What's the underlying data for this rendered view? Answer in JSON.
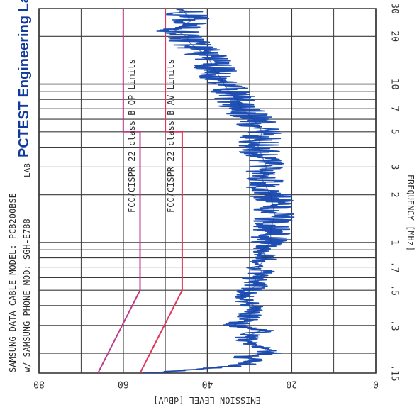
{
  "chart_data": {
    "type": "line",
    "orientation": "rotated-90-cw",
    "brand": "PCTEST Engineering Lab.",
    "lab_prefix": "LAB",
    "title_lines": [
      "SAMSUNG DATA CABLE   MODEL: PCB200BSE",
      "w/ SAMSUNG PHONE MOD: SGH-E788"
    ],
    "xlabel": "FREQUENCY [MHz]",
    "ylabel": "EMISSION LEVEL [dBuV]",
    "x_scale": "log",
    "xlim": [
      0.15,
      30
    ],
    "ylim": [
      0,
      80
    ],
    "x_ticks": [
      {
        "value": 0.15,
        "label": ".15"
      },
      {
        "value": 0.3,
        "label": ".3"
      },
      {
        "value": 0.5,
        "label": ".5"
      },
      {
        "value": 0.7,
        "label": ".7"
      },
      {
        "value": 1,
        "label": "1"
      },
      {
        "value": 2,
        "label": "2"
      },
      {
        "value": 3,
        "label": "3"
      },
      {
        "value": 5,
        "label": "5"
      },
      {
        "value": 7,
        "label": "7"
      },
      {
        "value": 10,
        "label": "10"
      },
      {
        "value": 20,
        "label": "20"
      },
      {
        "value": 30,
        "label": "30"
      }
    ],
    "y_ticks": [
      {
        "value": 0,
        "label": "0"
      },
      {
        "value": 20,
        "label": "20"
      },
      {
        "value": 40,
        "label": "40"
      },
      {
        "value": 60,
        "label": "60"
      },
      {
        "value": 80,
        "label": "80"
      }
    ],
    "grid": true,
    "limit_lines": [
      {
        "name": "FCC/CISPR 22 class B QP Limits",
        "color": "#c03a8a",
        "x": [
          0.15,
          0.5,
          5,
          5,
          30
        ],
        "y": [
          66,
          56,
          56,
          60,
          60
        ]
      },
      {
        "name": "FCC/CISPR 22 class B AV Limits",
        "color": "#e0365a",
        "x": [
          0.15,
          0.5,
          5,
          5,
          30
        ],
        "y": [
          56,
          46,
          46,
          50,
          50
        ]
      }
    ],
    "series": [
      {
        "color": "#1f4fb3",
        "x": [
          0.15,
          0.16,
          0.17,
          0.18,
          0.19,
          0.2,
          0.22,
          0.24,
          0.26,
          0.28,
          0.3,
          0.32,
          0.35,
          0.38,
          0.4,
          0.43,
          0.46,
          0.5,
          0.55,
          0.6,
          0.65,
          0.7,
          0.8,
          0.9,
          1,
          1.2,
          1.5,
          2,
          2.5,
          3,
          3.5,
          4,
          5,
          6,
          7,
          8,
          9,
          10,
          12,
          15,
          18,
          20,
          22,
          25,
          30
        ],
        "y": [
          54,
          40,
          31,
          28,
          32,
          25,
          27,
          31,
          30,
          27,
          34,
          31,
          30,
          28,
          29,
          31,
          32,
          30,
          28,
          29,
          27,
          28,
          26,
          27,
          25,
          25,
          24,
          25,
          27,
          26,
          27,
          28,
          27,
          29,
          32,
          33,
          35,
          36,
          38,
          40,
          44,
          45,
          48,
          44,
          46
        ]
      }
    ]
  }
}
